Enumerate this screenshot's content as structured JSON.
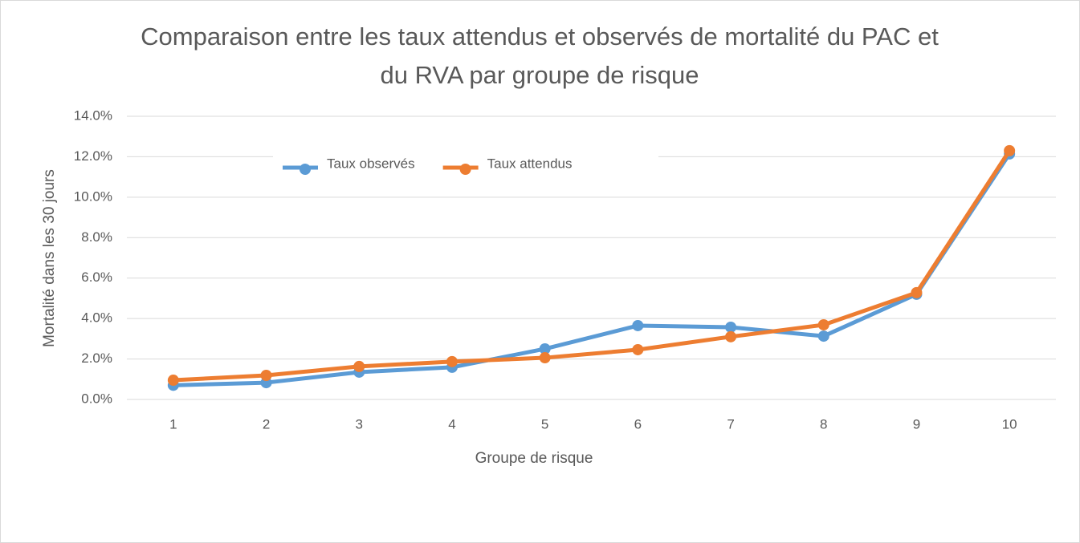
{
  "chart_data": {
    "type": "line",
    "title": "Comparaison entre les taux attendus et observés de mortalité du PAC et du RVA par groupe de risque",
    "x_label": "Groupe de risque",
    "y_label": "Mortalité dans les 30 jours",
    "categories": [
      "1",
      "2",
      "3",
      "4",
      "5",
      "6",
      "7",
      "8",
      "9",
      "10"
    ],
    "series": [
      {
        "name": "Taux observés",
        "color": "#5b9bd5",
        "values": [
          0.7,
          0.83,
          1.35,
          1.59,
          2.5,
          3.65,
          3.57,
          3.13,
          5.2,
          12.14
        ]
      },
      {
        "name": "Taux attendus",
        "color": "#ed7d31",
        "values": [
          0.95,
          1.19,
          1.63,
          1.87,
          2.06,
          2.46,
          3.1,
          3.69,
          5.28,
          12.3
        ]
      }
    ],
    "ylim": [
      0,
      14
    ],
    "yticks": [
      {
        "value": 0,
        "label": "0.0%"
      },
      {
        "value": 2,
        "label": "2.0%"
      },
      {
        "value": 4,
        "label": "4.0%"
      },
      {
        "value": 6,
        "label": "6.0%"
      },
      {
        "value": 8,
        "label": "8.0%"
      },
      {
        "value": 10,
        "label": "10.0%"
      },
      {
        "value": 12,
        "label": "12.0%"
      },
      {
        "value": 14,
        "label": "14.0%"
      }
    ],
    "grid": true,
    "legend": "top"
  }
}
